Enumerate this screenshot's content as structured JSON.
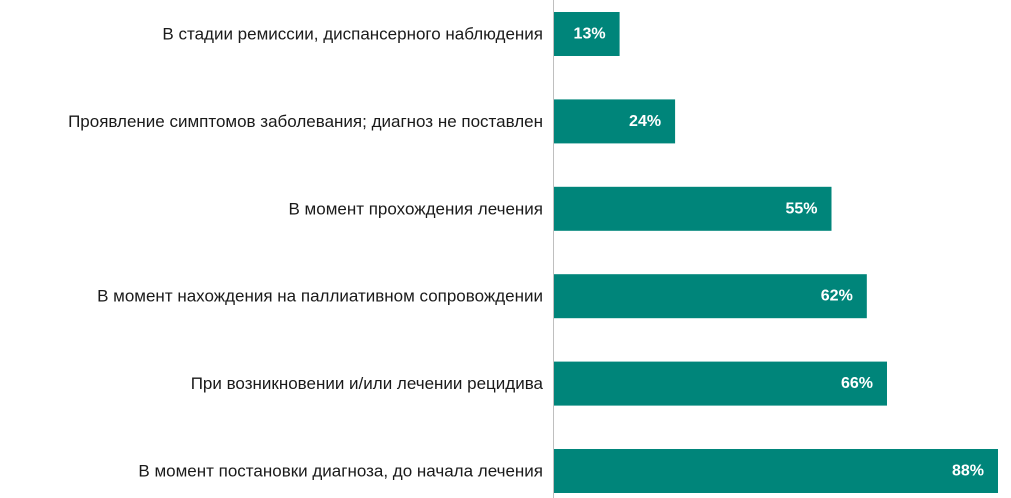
{
  "chart_data": {
    "type": "bar",
    "orientation": "horizontal",
    "categories": [
      "В стадии ремиссии, диспансерного наблюдения",
      "Проявление симптомов заболевания; диагноз не поставлен",
      "В момент прохождения лечения",
      "В момент нахождения на паллиативном сопровождении",
      "При возникновении и/или лечении рецидива",
      "В момент постановки диагноза, до начала лечения"
    ],
    "values": [
      13,
      24,
      55,
      62,
      66,
      88
    ],
    "value_labels": [
      "13%",
      "24%",
      "55%",
      "62%",
      "66%",
      "88%"
    ],
    "unit": "%",
    "xlim": [
      0,
      88
    ],
    "bar_color": "#00857a",
    "axis_color": "#bfbfbf",
    "grid": false,
    "legend": "none"
  }
}
